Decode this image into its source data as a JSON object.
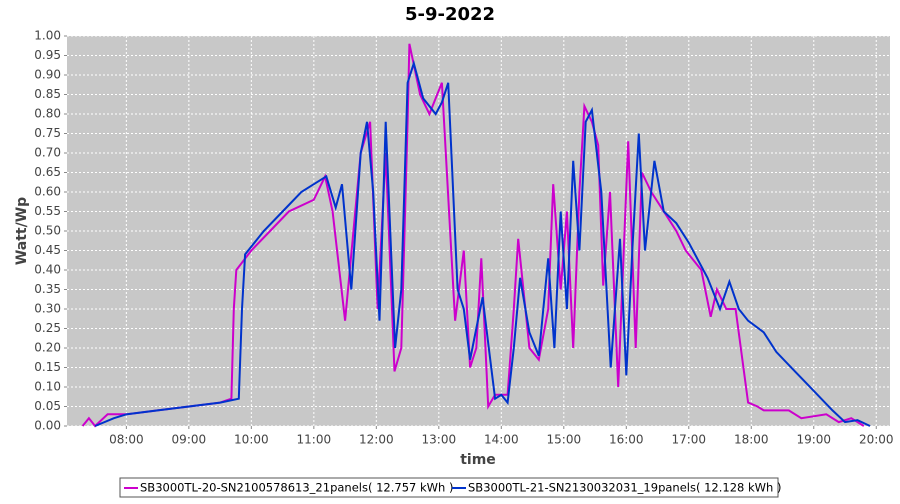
{
  "chart_data": {
    "type": "line",
    "title": "5-9-2022",
    "x_label": "time",
    "y_label": "Watt/Wp",
    "xlim": [
      7.05,
      20.22
    ],
    "ylim": [
      0,
      1
    ],
    "xticks": [
      {
        "value": 8,
        "label": "08:00"
      },
      {
        "value": 9,
        "label": "09:00"
      },
      {
        "value": 10,
        "label": "10:00"
      },
      {
        "value": 11,
        "label": "11:00"
      },
      {
        "value": 12,
        "label": "12:00"
      },
      {
        "value": 13,
        "label": "13:00"
      },
      {
        "value": 14,
        "label": "14:00"
      },
      {
        "value": 15,
        "label": "15:00"
      },
      {
        "value": 16,
        "label": "16:00"
      },
      {
        "value": 17,
        "label": "17:00"
      },
      {
        "value": 18,
        "label": "18:00"
      },
      {
        "value": 19,
        "label": "19:00"
      },
      {
        "value": 20,
        "label": "20:00"
      }
    ],
    "yticks": [
      {
        "value": 0,
        "label": "0.00"
      },
      {
        "value": 0.05,
        "label": "0.05"
      },
      {
        "value": 0.1,
        "label": "0.10"
      },
      {
        "value": 0.15,
        "label": "0.15"
      },
      {
        "value": 0.2,
        "label": "0.20"
      },
      {
        "value": 0.25,
        "label": "0.25"
      },
      {
        "value": 0.3,
        "label": "0.30"
      },
      {
        "value": 0.35,
        "label": "0.35"
      },
      {
        "value": 0.4,
        "label": "0.40"
      },
      {
        "value": 0.45,
        "label": "0.45"
      },
      {
        "value": 0.5,
        "label": "0.50"
      },
      {
        "value": 0.55,
        "label": "0.55"
      },
      {
        "value": 0.6,
        "label": "0.60"
      },
      {
        "value": 0.65,
        "label": "0.65"
      },
      {
        "value": 0.7,
        "label": "0.70"
      },
      {
        "value": 0.75,
        "label": "0.75"
      },
      {
        "value": 0.8,
        "label": "0.80"
      },
      {
        "value": 0.85,
        "label": "0.85"
      },
      {
        "value": 0.9,
        "label": "0.90"
      },
      {
        "value": 0.95,
        "label": "0.95"
      },
      {
        "value": 1,
        "label": "1.00"
      }
    ],
    "grid": true,
    "series": [
      {
        "name": "SB3000TL-20-SN2100578613_21panels( 12.757 kWh )",
        "color": "#cc00cc",
        "x": [
          7.3,
          7.4,
          7.5,
          7.7,
          8.0,
          8.5,
          9.0,
          9.5,
          9.68,
          9.72,
          9.76,
          10.0,
          10.3,
          10.6,
          11.0,
          11.18,
          11.3,
          11.5,
          11.75,
          11.9,
          12.02,
          12.15,
          12.29,
          12.4,
          12.5,
          12.53,
          12.7,
          12.85,
          13.05,
          13.26,
          13.4,
          13.5,
          13.6,
          13.68,
          13.79,
          13.9,
          14.1,
          14.2,
          14.27,
          14.45,
          14.6,
          14.75,
          14.83,
          14.95,
          15.05,
          15.15,
          15.25,
          15.33,
          15.45,
          15.55,
          15.63,
          15.74,
          15.87,
          16.03,
          16.15,
          16.25,
          16.4,
          16.8,
          16.95,
          17.2,
          17.35,
          17.45,
          17.6,
          17.75,
          17.95,
          18.1,
          18.2,
          18.6,
          18.8,
          19.2,
          19.4,
          19.6,
          19.8
        ],
        "values": [
          0,
          0.02,
          0,
          0.03,
          0.03,
          0.04,
          0.05,
          0.06,
          0.07,
          0.3,
          0.4,
          0.45,
          0.5,
          0.55,
          0.58,
          0.64,
          0.55,
          0.27,
          0.7,
          0.78,
          0.3,
          0.7,
          0.14,
          0.2,
          0.78,
          0.98,
          0.85,
          0.8,
          0.88,
          0.27,
          0.45,
          0.15,
          0.2,
          0.43,
          0.05,
          0.08,
          0.08,
          0.3,
          0.48,
          0.2,
          0.17,
          0.3,
          0.62,
          0.35,
          0.55,
          0.2,
          0.6,
          0.82,
          0.78,
          0.72,
          0.36,
          0.6,
          0.1,
          0.73,
          0.2,
          0.65,
          0.6,
          0.5,
          0.45,
          0.4,
          0.28,
          0.35,
          0.3,
          0.3,
          0.06,
          0.05,
          0.04,
          0.04,
          0.02,
          0.03,
          0.01,
          0.02,
          0
        ]
      },
      {
        "name": "SB3000TL-21-SN2130032031_19panels( 12.128 kWh )",
        "color": "#0033cc",
        "x": [
          7.5,
          7.8,
          8.0,
          8.5,
          9.0,
          9.5,
          9.8,
          9.85,
          9.9,
          10.2,
          10.5,
          10.8,
          11.0,
          11.2,
          11.35,
          11.45,
          11.6,
          11.75,
          11.85,
          11.95,
          12.05,
          12.15,
          12.3,
          12.4,
          12.5,
          12.6,
          12.75,
          12.95,
          13.05,
          13.15,
          13.3,
          13.4,
          13.5,
          13.6,
          13.7,
          13.8,
          13.9,
          14.0,
          14.1,
          14.2,
          14.3,
          14.45,
          14.6,
          14.75,
          14.85,
          14.95,
          15.05,
          15.15,
          15.25,
          15.35,
          15.45,
          15.6,
          15.75,
          15.9,
          16.0,
          16.1,
          16.2,
          16.3,
          16.45,
          16.6,
          16.8,
          17.0,
          17.3,
          17.5,
          17.65,
          17.8,
          17.95,
          18.2,
          18.4,
          18.7,
          19.0,
          19.3,
          19.5,
          19.7,
          19.9
        ],
        "values": [
          0,
          0.02,
          0.03,
          0.04,
          0.05,
          0.06,
          0.07,
          0.3,
          0.44,
          0.5,
          0.55,
          0.6,
          0.62,
          0.64,
          0.56,
          0.62,
          0.35,
          0.7,
          0.78,
          0.6,
          0.27,
          0.78,
          0.2,
          0.35,
          0.88,
          0.93,
          0.84,
          0.8,
          0.83,
          0.88,
          0.35,
          0.3,
          0.17,
          0.25,
          0.33,
          0.2,
          0.07,
          0.08,
          0.06,
          0.2,
          0.38,
          0.24,
          0.18,
          0.43,
          0.2,
          0.55,
          0.3,
          0.68,
          0.45,
          0.78,
          0.81,
          0.6,
          0.15,
          0.48,
          0.13,
          0.46,
          0.75,
          0.45,
          0.68,
          0.55,
          0.52,
          0.47,
          0.38,
          0.3,
          0.37,
          0.3,
          0.27,
          0.24,
          0.19,
          0.14,
          0.09,
          0.04,
          0.01,
          0.015,
          0
        ]
      }
    ]
  }
}
